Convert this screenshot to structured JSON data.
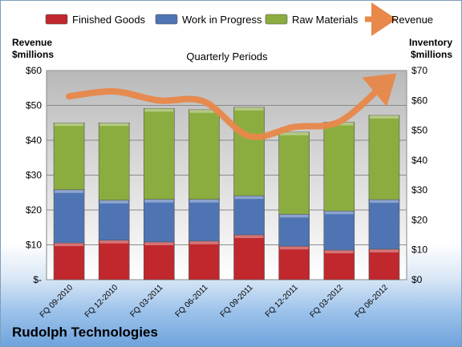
{
  "company": "Rudolph Technologies",
  "chart_data": {
    "type": "bar",
    "stacked": true,
    "title": "Quarterly Periods",
    "y_left_label": [
      "Revenue",
      "$millions"
    ],
    "y_right_label": [
      "Inventory",
      "$millions"
    ],
    "y_left_ticks": [
      "$-",
      "$10",
      "$20",
      "$30",
      "$40",
      "$50",
      "$60"
    ],
    "y_right_ticks": [
      "$0",
      "$10",
      "$20",
      "$30",
      "$40",
      "$50",
      "$60",
      "$70"
    ],
    "ylim_left": [
      0,
      60
    ],
    "ylim_right": [
      0,
      70
    ],
    "categories": [
      "FQ 09-2010",
      "FQ 12-2010",
      "FQ 03-2011",
      "FQ 06-2011",
      "FQ 09-2011",
      "FQ 12-2011",
      "FQ 03-2012",
      "FQ 06-2012"
    ],
    "series": [
      {
        "name": "Finished Goods",
        "axis": "right",
        "color": "#c0282d",
        "values": [
          12.3,
          13.2,
          12.6,
          12.9,
          15.0,
          11.2,
          9.9,
          10.2
        ]
      },
      {
        "name": "Work in Progress",
        "axis": "right",
        "color": "#4f74b3",
        "values": [
          17.8,
          13.4,
          14.3,
          14.0,
          13.1,
          10.7,
          13.1,
          16.6
        ]
      },
      {
        "name": "Raw Materials",
        "axis": "right",
        "color": "#8bad3f",
        "values": [
          22.4,
          25.9,
          30.4,
          30.0,
          29.6,
          27.5,
          29.7,
          28.2
        ]
      },
      {
        "name": "Revenue",
        "axis": "left",
        "type": "line",
        "color": "#e8884a",
        "values": [
          52.6,
          54.0,
          51.4,
          51.1,
          41.2,
          43.8,
          45.3,
          56.2
        ]
      }
    ],
    "legend": "top",
    "grid": true
  }
}
